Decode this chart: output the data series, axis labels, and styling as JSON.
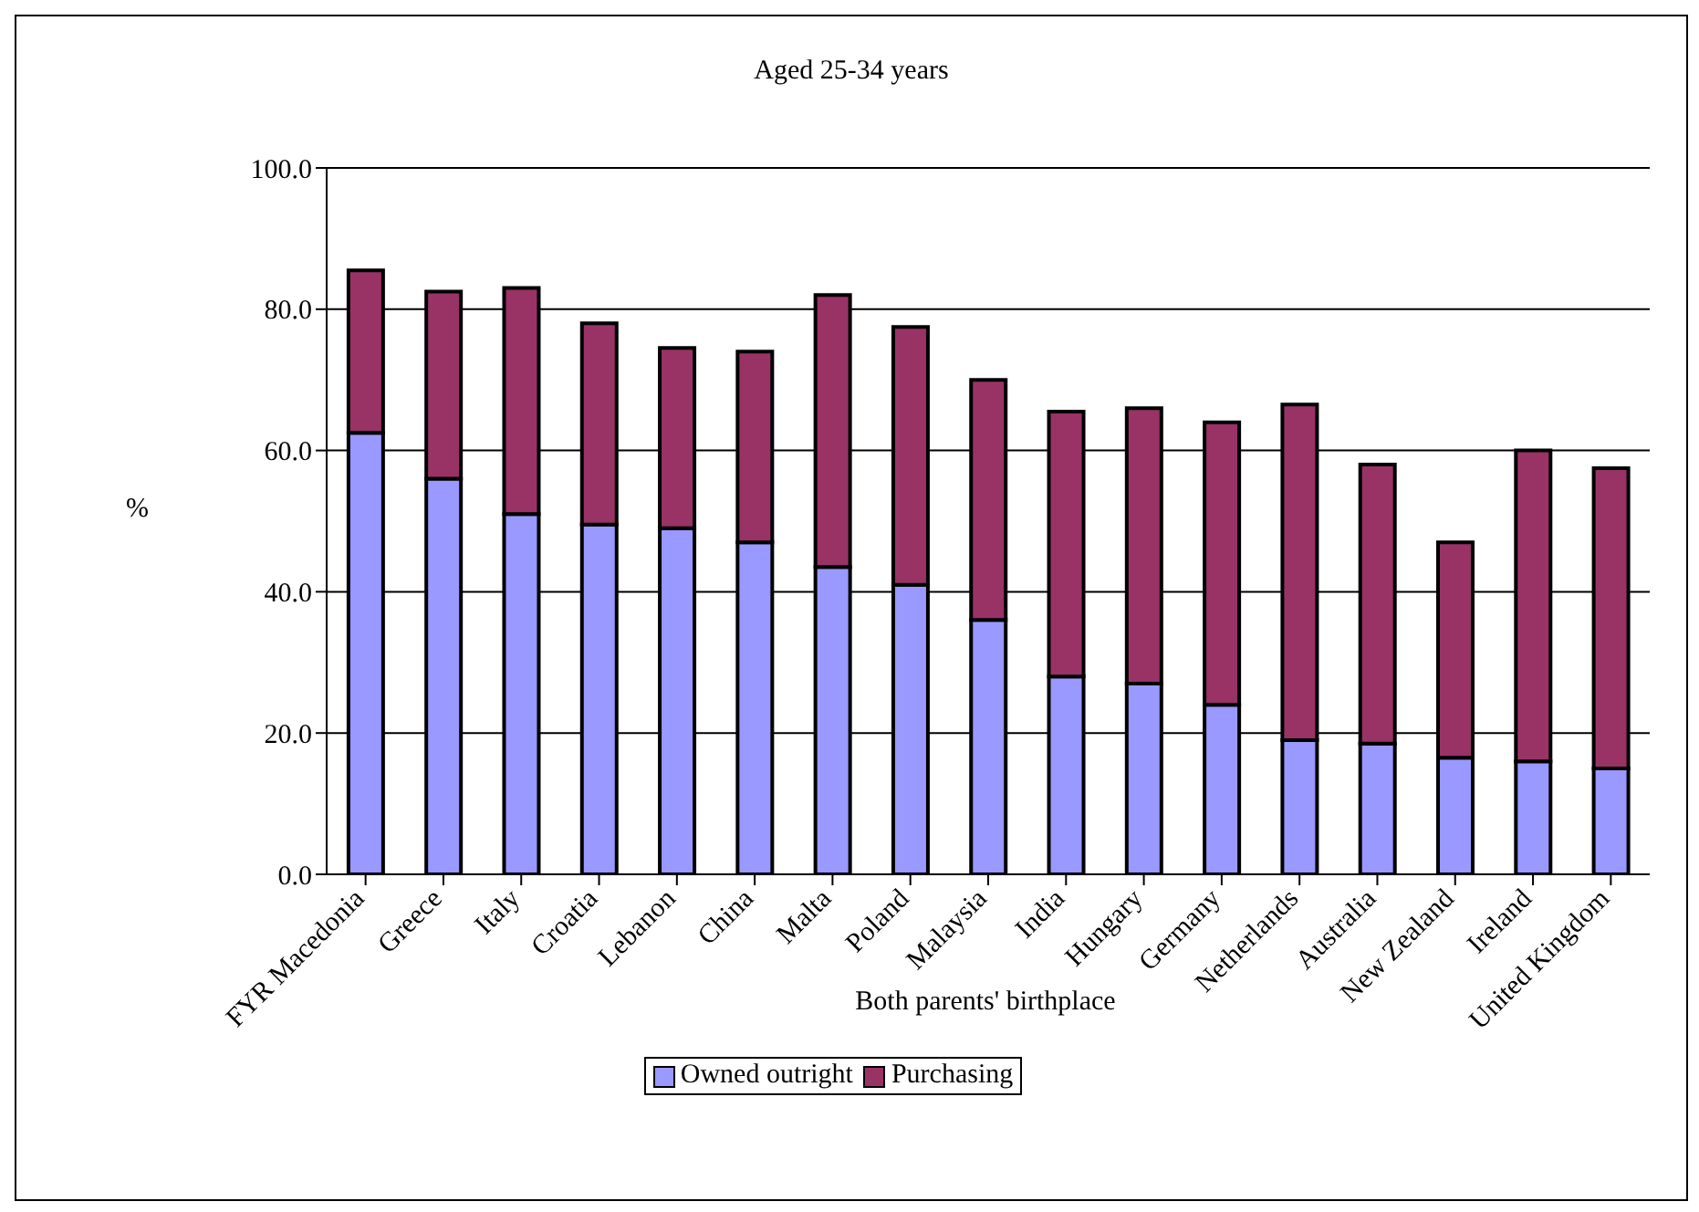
{
  "chart_data": {
    "type": "bar",
    "title": "Aged 25-34 years",
    "xlabel": "Both parents' birthplace",
    "ylabel": "%",
    "categories": [
      "FYR Macedonia",
      "Greece",
      "Italy",
      "Croatia",
      "Lebanon",
      "China",
      "Malta",
      "Poland",
      "Malaysia",
      "India",
      "Hungary",
      "Germany",
      "Netherlands",
      "Australia",
      "New Zealand",
      "Ireland",
      "United Kingdom"
    ],
    "series": [
      {
        "name": "Owned outright",
        "color": "#9999ff",
        "values": [
          62.5,
          56,
          51,
          49.5,
          49,
          47,
          43.5,
          41,
          36,
          28,
          27,
          24,
          19,
          18.5,
          16.5,
          16,
          15
        ]
      },
      {
        "name": "Purchasing",
        "color": "#993366",
        "values": [
          23,
          26.5,
          32,
          28.5,
          25.5,
          27,
          38.5,
          36.5,
          34,
          37.5,
          39,
          40,
          47.5,
          39.5,
          30.5,
          44,
          42.5
        ]
      }
    ],
    "stacked": true,
    "ylim": [
      0,
      100
    ],
    "yticks": [
      {
        "value": 0,
        "label": "0.0"
      },
      {
        "value": 20,
        "label": "20.0"
      },
      {
        "value": 40,
        "label": "40.0"
      },
      {
        "value": 60,
        "label": "60.0"
      },
      {
        "value": 80,
        "label": "80.0"
      },
      {
        "value": 100,
        "label": "100.0"
      }
    ],
    "grid": "y",
    "legend": "bottom"
  }
}
